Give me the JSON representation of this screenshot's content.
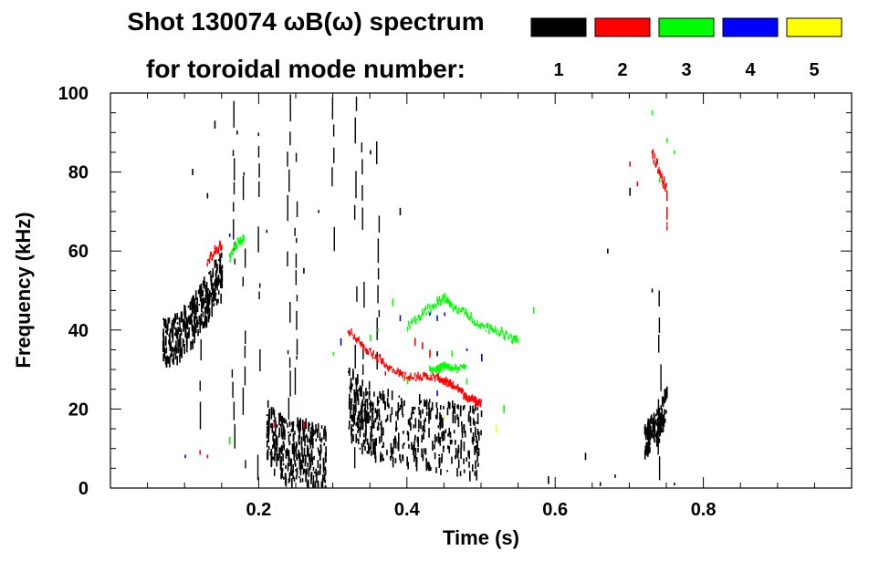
{
  "chart_data": {
    "type": "heatmap",
    "title_line1": "Shot 130074 ωB(ω) spectrum",
    "title_line2": "for toroidal mode number:",
    "xlabel": "Time (s)",
    "ylabel": "Frequency (kHz)",
    "xlim": [
      0.0,
      1.0
    ],
    "ylim": [
      0,
      100
    ],
    "x_ticks": [
      0.2,
      0.4,
      0.6,
      0.8
    ],
    "x_tick_labels": [
      "0.2",
      "0.4",
      "0.6",
      "0.8"
    ],
    "y_ticks": [
      0,
      20,
      40,
      60,
      80,
      100
    ],
    "y_tick_labels": [
      "0",
      "20",
      "40",
      "60",
      "80",
      "100"
    ],
    "legend_placement": "top",
    "modes": [
      {
        "n": "1",
        "color": "#000000"
      },
      {
        "n": "2",
        "color": "#ff0000"
      },
      {
        "n": "3",
        "color": "#00ff00"
      },
      {
        "n": "4",
        "color": "#0000ff"
      },
      {
        "n": "5",
        "color": "#ffff00"
      }
    ],
    "series": [
      {
        "mode": "1",
        "kind": "blob",
        "points": [
          [
            0.07,
            37
          ],
          [
            0.08,
            37
          ],
          [
            0.09,
            38
          ],
          [
            0.1,
            40
          ],
          [
            0.11,
            42
          ],
          [
            0.12,
            45
          ],
          [
            0.13,
            48
          ],
          [
            0.14,
            52
          ],
          [
            0.15,
            54
          ]
        ],
        "spread": 6
      },
      {
        "mode": "1",
        "kind": "blob",
        "points": [
          [
            0.21,
            15
          ],
          [
            0.22,
            12
          ],
          [
            0.23,
            10
          ],
          [
            0.24,
            9
          ],
          [
            0.25,
            9
          ],
          [
            0.26,
            9
          ],
          [
            0.27,
            8
          ],
          [
            0.28,
            8
          ],
          [
            0.29,
            8
          ]
        ],
        "spread": 8
      },
      {
        "mode": "1",
        "kind": "blob",
        "points": [
          [
            0.32,
            22
          ],
          [
            0.33,
            20
          ],
          [
            0.34,
            18
          ],
          [
            0.35,
            17
          ],
          [
            0.36,
            16
          ],
          [
            0.38,
            15
          ],
          [
            0.4,
            14
          ],
          [
            0.42,
            14
          ],
          [
            0.44,
            13
          ],
          [
            0.46,
            13
          ],
          [
            0.48,
            12
          ],
          [
            0.5,
            11
          ]
        ],
        "spread": 9
      },
      {
        "mode": "1",
        "kind": "blob",
        "points": [
          [
            0.72,
            12
          ],
          [
            0.73,
            14
          ],
          [
            0.74,
            16
          ],
          [
            0.75,
            22
          ]
        ],
        "spread": 4
      },
      {
        "mode": "1",
        "kind": "vertical",
        "points": [
          [
            0.24,
            0,
            100
          ],
          [
            0.25,
            5,
            95
          ],
          [
            0.3,
            60,
            100
          ],
          [
            0.33,
            5,
            100
          ],
          [
            0.34,
            10,
            98
          ],
          [
            0.165,
            10,
            98
          ],
          [
            0.18,
            5,
            80
          ],
          [
            0.74,
            2,
            50
          ],
          [
            0.27,
            68,
            72
          ],
          [
            0.12,
            5,
            55
          ],
          [
            0.2,
            2,
            90
          ],
          [
            0.36,
            30,
            90
          ]
        ]
      },
      {
        "mode": "1",
        "kind": "scatter",
        "points": [
          [
            0.14,
            92
          ],
          [
            0.11,
            80
          ],
          [
            0.13,
            74
          ],
          [
            0.17,
            90
          ],
          [
            0.21,
            65
          ],
          [
            0.26,
            55
          ],
          [
            0.28,
            70
          ],
          [
            0.35,
            85
          ],
          [
            0.39,
            70
          ],
          [
            0.44,
            34
          ],
          [
            0.68,
            3
          ],
          [
            0.76,
            1
          ],
          [
            0.7,
            75
          ],
          [
            0.73,
            50
          ],
          [
            0.67,
            60
          ],
          [
            0.66,
            1
          ],
          [
            0.64,
            8
          ],
          [
            0.59,
            2
          ]
        ]
      },
      {
        "mode": "2",
        "kind": "line",
        "points": [
          [
            0.13,
            57
          ],
          [
            0.14,
            60
          ],
          [
            0.15,
            62
          ]
        ],
        "spread": 2
      },
      {
        "mode": "2",
        "kind": "line",
        "points": [
          [
            0.32,
            40
          ],
          [
            0.34,
            36
          ],
          [
            0.36,
            33
          ],
          [
            0.38,
            30
          ],
          [
            0.4,
            28
          ],
          [
            0.42,
            28
          ],
          [
            0.44,
            28
          ],
          [
            0.45,
            27
          ],
          [
            0.46,
            26
          ],
          [
            0.47,
            25
          ],
          [
            0.48,
            23
          ],
          [
            0.49,
            22
          ],
          [
            0.5,
            22
          ]
        ],
        "spread": 1.5
      },
      {
        "mode": "2",
        "kind": "line",
        "points": [
          [
            0.73,
            85
          ],
          [
            0.74,
            80
          ],
          [
            0.75,
            75
          ],
          [
            0.75,
            66
          ]
        ],
        "spread": 3
      },
      {
        "mode": "2",
        "kind": "scatter",
        "points": [
          [
            0.7,
            82
          ],
          [
            0.71,
            77
          ],
          [
            0.13,
            8
          ],
          [
            0.12,
            9
          ],
          [
            0.22,
            16
          ],
          [
            0.26,
            16
          ],
          [
            0.37,
            29
          ],
          [
            0.43,
            34
          ],
          [
            0.41,
            37
          ],
          [
            0.42,
            36
          ]
        ]
      },
      {
        "mode": "3",
        "kind": "line",
        "points": [
          [
            0.16,
            58
          ],
          [
            0.17,
            62
          ],
          [
            0.18,
            63
          ]
        ],
        "spread": 2
      },
      {
        "mode": "3",
        "kind": "line",
        "points": [
          [
            0.4,
            41
          ],
          [
            0.42,
            44
          ],
          [
            0.44,
            47
          ],
          [
            0.45,
            48
          ],
          [
            0.46,
            46
          ],
          [
            0.48,
            44
          ],
          [
            0.5,
            41
          ],
          [
            0.52,
            40
          ],
          [
            0.54,
            38
          ],
          [
            0.55,
            38
          ]
        ],
        "spread": 1.8
      },
      {
        "mode": "3",
        "kind": "line",
        "points": [
          [
            0.43,
            30
          ],
          [
            0.44,
            30
          ],
          [
            0.45,
            31
          ],
          [
            0.46,
            30
          ],
          [
            0.48,
            31
          ]
        ],
        "spread": 1.2
      },
      {
        "mode": "3",
        "kind": "scatter",
        "points": [
          [
            0.73,
            95
          ],
          [
            0.75,
            88
          ],
          [
            0.76,
            85
          ],
          [
            0.74,
            78
          ],
          [
            0.38,
            47
          ],
          [
            0.36,
            40
          ],
          [
            0.35,
            38
          ],
          [
            0.3,
            34
          ],
          [
            0.46,
            34
          ],
          [
            0.53,
            20
          ],
          [
            0.48,
            27
          ],
          [
            0.16,
            12
          ],
          [
            0.57,
            45
          ],
          [
            0.4,
            27
          ]
        ]
      },
      {
        "mode": "4",
        "kind": "scatter",
        "points": [
          [
            0.16,
            64
          ],
          [
            0.31,
            37
          ],
          [
            0.39,
            43
          ],
          [
            0.43,
            44
          ],
          [
            0.44,
            43
          ],
          [
            0.45,
            44
          ],
          [
            0.48,
            35
          ],
          [
            0.5,
            33
          ],
          [
            0.1,
            8
          ],
          [
            0.44,
            24
          ]
        ]
      },
      {
        "mode": "5",
        "kind": "scatter",
        "points": [
          [
            0.45,
            18
          ],
          [
            0.52,
            15
          ]
        ]
      }
    ]
  }
}
